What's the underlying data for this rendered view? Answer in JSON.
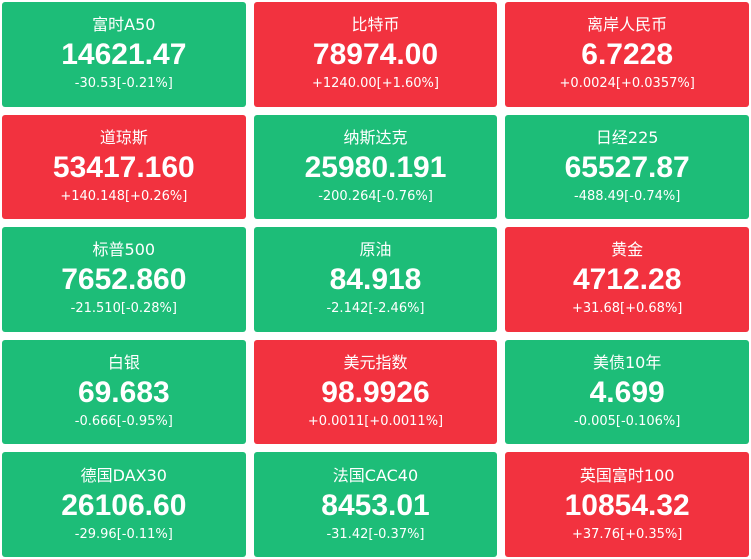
{
  "tiles": [
    {
      "name": "富时A50",
      "price": "14621.47",
      "change": "-30.53[-0.21%]",
      "color": "#1dbd78"
    },
    {
      "name": "比特币",
      "price": "78974.00",
      "change": "+1240.00[+1.60%]",
      "color": "#f2323f"
    },
    {
      "name": "离岸人民币",
      "price": "6.7228",
      "change": "+0.0024[+0.0357%]",
      "color": "#f2323f"
    },
    {
      "name": "道琼斯",
      "price": "53417.160",
      "change": "+140.148[+0.26%]",
      "color": "#f2323f"
    },
    {
      "name": "纳斯达克",
      "price": "25980.191",
      "change": "-200.264[-0.76%]",
      "color": "#1dbd78"
    },
    {
      "name": "日经225",
      "price": "65527.87",
      "change": "-488.49[-0.74%]",
      "color": "#1dbd78"
    },
    {
      "name": "标普500",
      "price": "7652.860",
      "change": "-21.510[-0.28%]",
      "color": "#1dbd78"
    },
    {
      "name": "原油",
      "price": "84.918",
      "change": "-2.142[-2.46%]",
      "color": "#1dbd78"
    },
    {
      "name": "黄金",
      "price": "4712.28",
      "change": "+31.68[+0.68%]",
      "color": "#f2323f"
    },
    {
      "name": "白银",
      "price": "69.683",
      "change": "-0.666[-0.95%]",
      "color": "#1dbd78"
    },
    {
      "name": "美元指数",
      "price": "98.9926",
      "change": "+0.0011[+0.0011%]",
      "color": "#f2323f"
    },
    {
      "name": "美债10年",
      "price": "4.699",
      "change": "-0.005[-0.106%]",
      "color": "#1dbd78"
    },
    {
      "name": "德国DAX30",
      "price": "26106.60",
      "change": "-29.96[-0.11%]",
      "color": "#1dbd78"
    },
    {
      "name": "法国CAC40",
      "price": "8453.01",
      "change": "-31.42[-0.37%]",
      "color": "#1dbd78"
    },
    {
      "name": "英国富时100",
      "price": "10854.32",
      "change": "+37.76[+0.35%]",
      "color": "#f2323f"
    }
  ]
}
